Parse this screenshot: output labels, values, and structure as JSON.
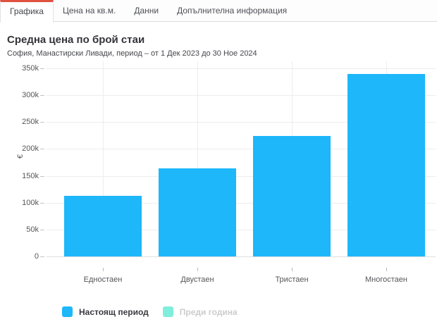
{
  "tabs": [
    {
      "name": "tab-chart",
      "label": "Графика",
      "active": true
    },
    {
      "name": "tab-price-per-sqm",
      "label": "Цена на кв.м.",
      "active": false
    },
    {
      "name": "tab-data",
      "label": "Данни",
      "active": false
    },
    {
      "name": "tab-additional-info",
      "label": "Допълнителна информация",
      "active": false
    }
  ],
  "header": {
    "title": "Средна цена по брой стаи",
    "subtitle": "София, Манастирски Ливади, период – от 1 Дек 2023 до 30 Ное 2024"
  },
  "chart_data": {
    "type": "bar",
    "title": "Средна цена по брой стаи",
    "subtitle": "София, Манастирски Ливади, период – от 1 Дек 2023 до 30 Ное 2024",
    "categories": [
      "Едностаен",
      "Двустаен",
      "Тристаен",
      "Многостаен"
    ],
    "series": [
      {
        "name": "Настоящ период",
        "color": "#1db7fa",
        "visible": true,
        "values": [
          113000,
          164000,
          224000,
          339000
        ]
      },
      {
        "name": "Преди година",
        "color": "#7feedb",
        "visible": false,
        "values": []
      }
    ],
    "ylabel": "€",
    "xlabel": "",
    "ylim": [
      0,
      350000
    ],
    "ytick_step": 50000,
    "ytick_labels": [
      "350k",
      "300k",
      "250k",
      "200k",
      "150k",
      "100k",
      "50k",
      "0"
    ],
    "grid": true,
    "legend_position": "bottom"
  },
  "colors": {
    "accent": "#e05140",
    "bar_current": "#1db7fa",
    "bar_previous": "#7feedb",
    "hidden_legend_text": "#cccccc"
  }
}
